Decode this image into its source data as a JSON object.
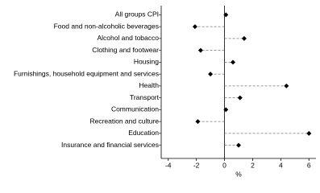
{
  "chart_data": {
    "type": "dot",
    "categories": [
      "All groups CPI",
      "Food and non-alcoholic beverages",
      "Alcohol and tobacco",
      "Clothing and footwear",
      "Housing",
      "Furnishings, household equipment and services",
      "Health",
      "Transport",
      "Communication",
      "Recreation and culture",
      "Education",
      "Insurance and financial services"
    ],
    "values": [
      0.1,
      -2.1,
      1.4,
      -1.7,
      0.6,
      -1.0,
      4.4,
      1.1,
      0.1,
      -1.9,
      6.0,
      1.0
    ],
    "color": "#000000",
    "xlabel": "%",
    "xlim": [
      -4.5,
      6.5
    ],
    "xticks": [
      -4,
      -2,
      0,
      2,
      4,
      6
    ]
  }
}
